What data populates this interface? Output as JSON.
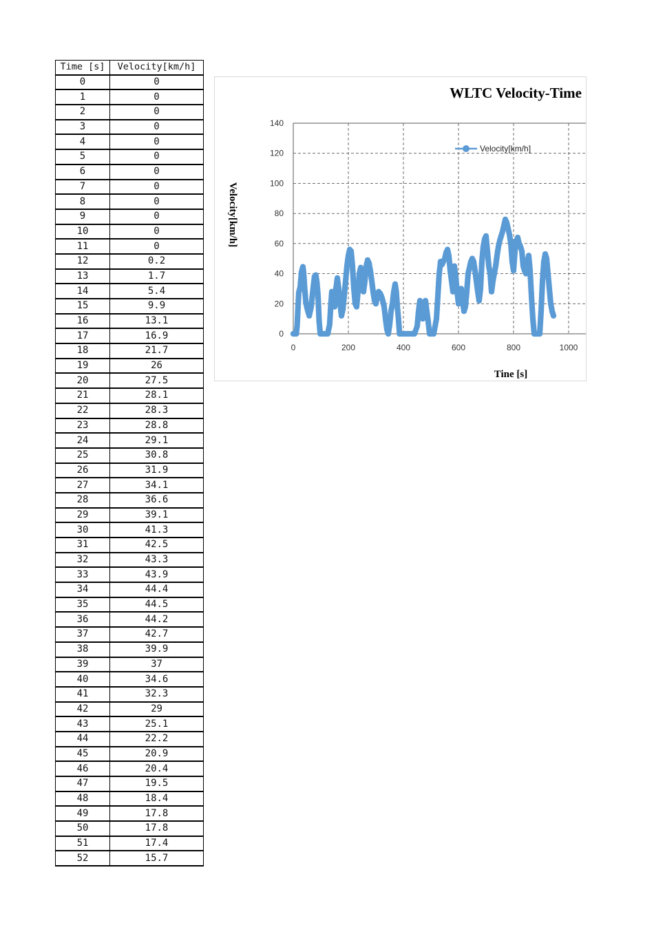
{
  "table": {
    "headers": [
      "Time [s]",
      "Velocity[km/h]"
    ],
    "rows": [
      [
        "0",
        "0"
      ],
      [
        "1",
        "0"
      ],
      [
        "2",
        "0"
      ],
      [
        "3",
        "0"
      ],
      [
        "4",
        "0"
      ],
      [
        "5",
        "0"
      ],
      [
        "6",
        "0"
      ],
      [
        "7",
        "0"
      ],
      [
        "8",
        "0"
      ],
      [
        "9",
        "0"
      ],
      [
        "10",
        "0"
      ],
      [
        "11",
        "0"
      ],
      [
        "12",
        "0.2"
      ],
      [
        "13",
        "1.7"
      ],
      [
        "14",
        "5.4"
      ],
      [
        "15",
        "9.9"
      ],
      [
        "16",
        "13.1"
      ],
      [
        "17",
        "16.9"
      ],
      [
        "18",
        "21.7"
      ],
      [
        "19",
        "26"
      ],
      [
        "20",
        "27.5"
      ],
      [
        "21",
        "28.1"
      ],
      [
        "22",
        "28.3"
      ],
      [
        "23",
        "28.8"
      ],
      [
        "24",
        "29.1"
      ],
      [
        "25",
        "30.8"
      ],
      [
        "26",
        "31.9"
      ],
      [
        "27",
        "34.1"
      ],
      [
        "28",
        "36.6"
      ],
      [
        "29",
        "39.1"
      ],
      [
        "30",
        "41.3"
      ],
      [
        "31",
        "42.5"
      ],
      [
        "32",
        "43.3"
      ],
      [
        "33",
        "43.9"
      ],
      [
        "34",
        "44.4"
      ],
      [
        "35",
        "44.5"
      ],
      [
        "36",
        "44.2"
      ],
      [
        "37",
        "42.7"
      ],
      [
        "38",
        "39.9"
      ],
      [
        "39",
        "37"
      ],
      [
        "40",
        "34.6"
      ],
      [
        "41",
        "32.3"
      ],
      [
        "42",
        "29"
      ],
      [
        "43",
        "25.1"
      ],
      [
        "44",
        "22.2"
      ],
      [
        "45",
        "20.9"
      ],
      [
        "46",
        "20.4"
      ],
      [
        "47",
        "19.5"
      ],
      [
        "48",
        "18.4"
      ],
      [
        "49",
        "17.8"
      ],
      [
        "50",
        "17.8"
      ],
      [
        "51",
        "17.4"
      ],
      [
        "52",
        "15.7"
      ]
    ]
  },
  "chart_data": {
    "type": "scatter",
    "title": "WLTC Velocity-Time",
    "xlabel": "Tine [s]",
    "ylabel": "Velocity[km/h]",
    "xlim": [
      0,
      1000
    ],
    "ylim": [
      0,
      140
    ],
    "xticks": [
      0,
      200,
      400,
      600,
      800,
      1000
    ],
    "yticks": [
      0,
      20,
      40,
      60,
      80,
      100,
      120,
      140
    ],
    "grid": true,
    "legend_position": "top-right",
    "series": [
      {
        "name": "Velocity[km/h]",
        "color": "#5b9bd5",
        "marker": "circle",
        "points": [
          [
            0,
            0
          ],
          [
            11,
            0
          ],
          [
            14,
            5.4
          ],
          [
            17,
            16.9
          ],
          [
            20,
            27.5
          ],
          [
            25,
            30.8
          ],
          [
            30,
            41.3
          ],
          [
            35,
            44.5
          ],
          [
            38,
            39.9
          ],
          [
            42,
            29
          ],
          [
            46,
            20.4
          ],
          [
            52,
            15.7
          ],
          [
            58,
            12
          ],
          [
            65,
            18
          ],
          [
            72,
            30
          ],
          [
            77,
            38
          ],
          [
            82,
            39
          ],
          [
            86,
            34
          ],
          [
            90,
            25
          ],
          [
            94,
            8
          ],
          [
            98,
            0
          ],
          [
            110,
            0
          ],
          [
            125,
            0
          ],
          [
            132,
            6
          ],
          [
            136,
            18
          ],
          [
            140,
            28
          ],
          [
            145,
            25
          ],
          [
            150,
            18
          ],
          [
            155,
            30
          ],
          [
            160,
            37
          ],
          [
            165,
            30
          ],
          [
            170,
            20
          ],
          [
            175,
            12
          ],
          [
            180,
            16
          ],
          [
            185,
            25
          ],
          [
            190,
            35
          ],
          [
            195,
            45
          ],
          [
            200,
            52
          ],
          [
            205,
            56
          ],
          [
            210,
            55
          ],
          [
            215,
            45
          ],
          [
            220,
            30
          ],
          [
            225,
            20
          ],
          [
            230,
            18
          ],
          [
            235,
            28
          ],
          [
            240,
            40
          ],
          [
            245,
            44
          ],
          [
            250,
            38
          ],
          [
            255,
            28
          ],
          [
            260,
            35
          ],
          [
            265,
            45
          ],
          [
            270,
            49
          ],
          [
            275,
            47
          ],
          [
            280,
            42
          ],
          [
            285,
            35
          ],
          [
            290,
            28
          ],
          [
            295,
            22
          ],
          [
            300,
            20
          ],
          [
            305,
            24
          ],
          [
            310,
            28
          ],
          [
            315,
            27
          ],
          [
            320,
            25
          ],
          [
            325,
            22
          ],
          [
            330,
            18
          ],
          [
            335,
            10
          ],
          [
            340,
            3
          ],
          [
            345,
            0
          ],
          [
            350,
            6
          ],
          [
            355,
            15
          ],
          [
            360,
            20
          ],
          [
            365,
            28
          ],
          [
            370,
            33
          ],
          [
            374,
            28
          ],
          [
            378,
            18
          ],
          [
            382,
            10
          ],
          [
            386,
            0
          ],
          [
            400,
            0
          ],
          [
            420,
            0
          ],
          [
            440,
            0
          ],
          [
            450,
            5
          ],
          [
            455,
            15
          ],
          [
            460,
            22
          ],
          [
            465,
            18
          ],
          [
            470,
            10
          ],
          [
            475,
            18
          ],
          [
            480,
            22
          ],
          [
            485,
            15
          ],
          [
            490,
            8
          ],
          [
            495,
            0
          ],
          [
            510,
            0
          ],
          [
            515,
            5
          ],
          [
            520,
            10
          ],
          [
            525,
            25
          ],
          [
            530,
            40
          ],
          [
            535,
            48
          ],
          [
            540,
            46
          ],
          [
            545,
            48
          ],
          [
            550,
            50
          ],
          [
            555,
            54
          ],
          [
            560,
            56
          ],
          [
            565,
            52
          ],
          [
            570,
            42
          ],
          [
            575,
            35
          ],
          [
            580,
            28
          ],
          [
            585,
            45
          ],
          [
            590,
            38
          ],
          [
            595,
            28
          ],
          [
            600,
            20
          ],
          [
            605,
            25
          ],
          [
            610,
            30
          ],
          [
            615,
            22
          ],
          [
            620,
            15
          ],
          [
            625,
            18
          ],
          [
            630,
            28
          ],
          [
            635,
            40
          ],
          [
            640,
            44
          ],
          [
            645,
            48
          ],
          [
            650,
            50
          ],
          [
            655,
            48
          ],
          [
            660,
            42
          ],
          [
            665,
            35
          ],
          [
            670,
            28
          ],
          [
            675,
            22
          ],
          [
            680,
            30
          ],
          [
            685,
            48
          ],
          [
            690,
            58
          ],
          [
            695,
            63
          ],
          [
            700,
            65
          ],
          [
            705,
            55
          ],
          [
            710,
            45
          ],
          [
            715,
            40
          ],
          [
            720,
            28
          ],
          [
            725,
            35
          ],
          [
            730,
            40
          ],
          [
            735,
            45
          ],
          [
            740,
            52
          ],
          [
            745,
            58
          ],
          [
            750,
            62
          ],
          [
            755,
            65
          ],
          [
            760,
            68
          ],
          [
            765,
            72
          ],
          [
            770,
            76
          ],
          [
            775,
            74
          ],
          [
            780,
            70
          ],
          [
            785,
            66
          ],
          [
            790,
            60
          ],
          [
            795,
            48
          ],
          [
            800,
            42
          ],
          [
            805,
            55
          ],
          [
            810,
            62
          ],
          [
            815,
            64
          ],
          [
            820,
            60
          ],
          [
            825,
            58
          ],
          [
            830,
            55
          ],
          [
            835,
            45
          ],
          [
            840,
            42
          ],
          [
            845,
            40
          ],
          [
            850,
            48
          ],
          [
            855,
            52
          ],
          [
            860,
            42
          ],
          [
            865,
            25
          ],
          [
            870,
            10
          ],
          [
            875,
            0
          ],
          [
            885,
            0
          ],
          [
            895,
            0
          ],
          [
            900,
            15
          ],
          [
            905,
            35
          ],
          [
            910,
            48
          ],
          [
            915,
            53
          ],
          [
            920,
            50
          ],
          [
            925,
            40
          ],
          [
            930,
            30
          ],
          [
            935,
            20
          ],
          [
            940,
            15
          ],
          [
            945,
            12
          ]
        ]
      }
    ]
  }
}
